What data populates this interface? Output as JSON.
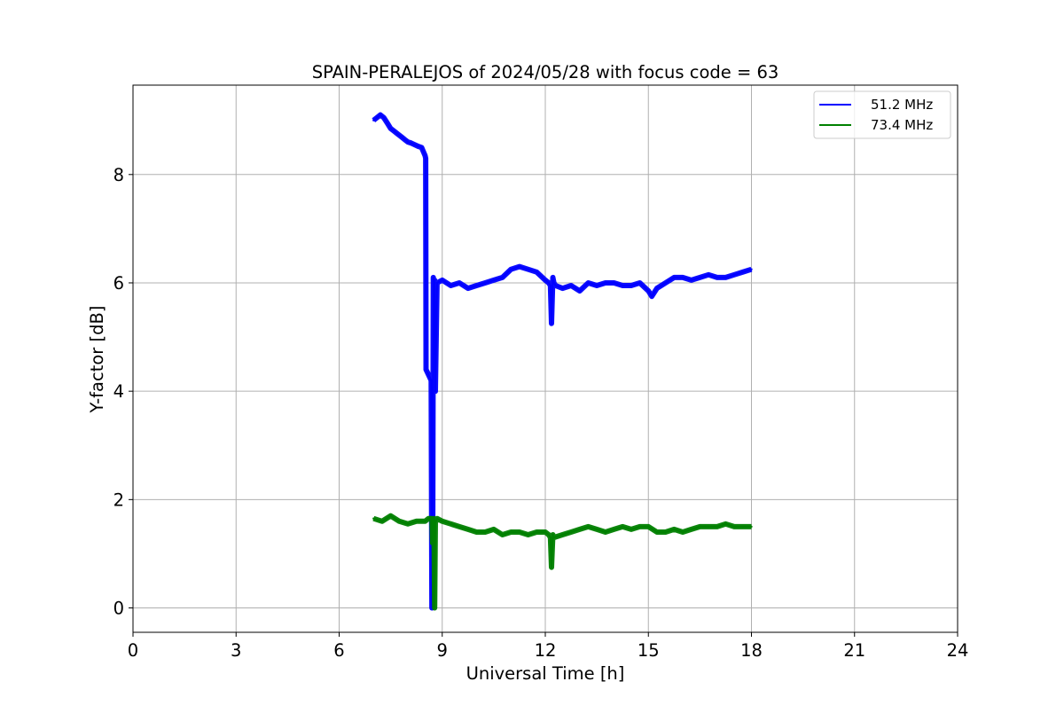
{
  "chart_data": {
    "type": "line",
    "title": "SPAIN-PERALEJOS of 2024/05/28 with focus code = 63",
    "xlabel": "Universal Time [h]",
    "ylabel": "Y-factor [dB]",
    "xlim": [
      0,
      24
    ],
    "ylim": [
      -0.45,
      9.65
    ],
    "xticks": [
      0,
      3,
      6,
      9,
      12,
      15,
      18,
      21,
      24
    ],
    "yticks": [
      0,
      2,
      4,
      6,
      8
    ],
    "grid": true,
    "legend_position": "top-right",
    "series": [
      {
        "name": "51.2 MHz",
        "color": "#0000ff",
        "x": [
          7.0,
          7.1,
          7.2,
          7.3,
          7.4,
          7.5,
          7.6,
          7.7,
          7.8,
          7.9,
          8.0,
          8.1,
          8.2,
          8.3,
          8.4,
          8.5,
          8.52,
          8.53,
          8.68,
          8.7,
          8.72,
          8.74,
          8.76,
          8.78,
          8.8,
          8.85,
          9.0,
          9.25,
          9.5,
          9.75,
          10.0,
          10.25,
          10.5,
          10.75,
          11.0,
          11.25,
          11.5,
          11.75,
          12.0,
          12.1,
          12.15,
          12.18,
          12.22,
          12.25,
          12.3,
          12.5,
          12.75,
          13.0,
          13.25,
          13.5,
          13.75,
          14.0,
          14.25,
          14.5,
          14.75,
          15.0,
          15.1,
          15.25,
          15.5,
          15.75,
          16.0,
          16.25,
          16.5,
          16.75,
          17.0,
          17.25,
          17.5,
          17.75,
          18.0
        ],
        "y": [
          9.0,
          9.05,
          9.1,
          9.05,
          8.95,
          8.85,
          8.8,
          8.75,
          8.7,
          8.65,
          8.6,
          8.58,
          8.55,
          8.52,
          8.5,
          8.35,
          8.3,
          4.4,
          4.2,
          0.0,
          0.1,
          6.1,
          5.5,
          6.05,
          4.0,
          6.0,
          6.05,
          5.95,
          6.0,
          5.9,
          5.95,
          6.0,
          6.05,
          6.1,
          6.25,
          6.3,
          6.25,
          6.2,
          6.05,
          6.0,
          5.95,
          5.25,
          6.1,
          6.0,
          5.95,
          5.9,
          5.95,
          5.85,
          6.0,
          5.95,
          6.0,
          6.0,
          5.95,
          5.95,
          6.0,
          5.85,
          5.75,
          5.9,
          6.0,
          6.1,
          6.1,
          6.05,
          6.1,
          6.15,
          6.1,
          6.1,
          6.15,
          6.2,
          6.25
        ]
      },
      {
        "name": "73.4 MHz",
        "color": "#008000",
        "x": [
          7.0,
          7.25,
          7.5,
          7.75,
          8.0,
          8.25,
          8.5,
          8.6,
          8.7,
          8.72,
          8.76,
          8.78,
          8.8,
          8.82,
          8.85,
          9.0,
          9.25,
          9.5,
          9.75,
          10.0,
          10.25,
          10.5,
          10.75,
          11.0,
          11.25,
          11.5,
          11.75,
          12.0,
          12.1,
          12.15,
          12.18,
          12.22,
          12.25,
          12.5,
          12.75,
          13.0,
          13.25,
          13.5,
          13.75,
          14.0,
          14.25,
          14.5,
          14.75,
          15.0,
          15.25,
          15.5,
          15.75,
          16.0,
          16.25,
          16.5,
          16.75,
          17.0,
          17.25,
          17.5,
          17.75,
          18.0
        ],
        "y": [
          1.65,
          1.6,
          1.7,
          1.6,
          1.55,
          1.6,
          1.6,
          1.65,
          1.65,
          1.2,
          1.65,
          0.0,
          1.6,
          1.6,
          1.65,
          1.6,
          1.55,
          1.5,
          1.45,
          1.4,
          1.4,
          1.45,
          1.35,
          1.4,
          1.4,
          1.35,
          1.4,
          1.4,
          1.35,
          1.3,
          0.75,
          1.35,
          1.3,
          1.35,
          1.4,
          1.45,
          1.5,
          1.45,
          1.4,
          1.45,
          1.5,
          1.45,
          1.5,
          1.5,
          1.4,
          1.4,
          1.45,
          1.4,
          1.45,
          1.5,
          1.5,
          1.5,
          1.55,
          1.5,
          1.5,
          1.5
        ]
      }
    ]
  }
}
